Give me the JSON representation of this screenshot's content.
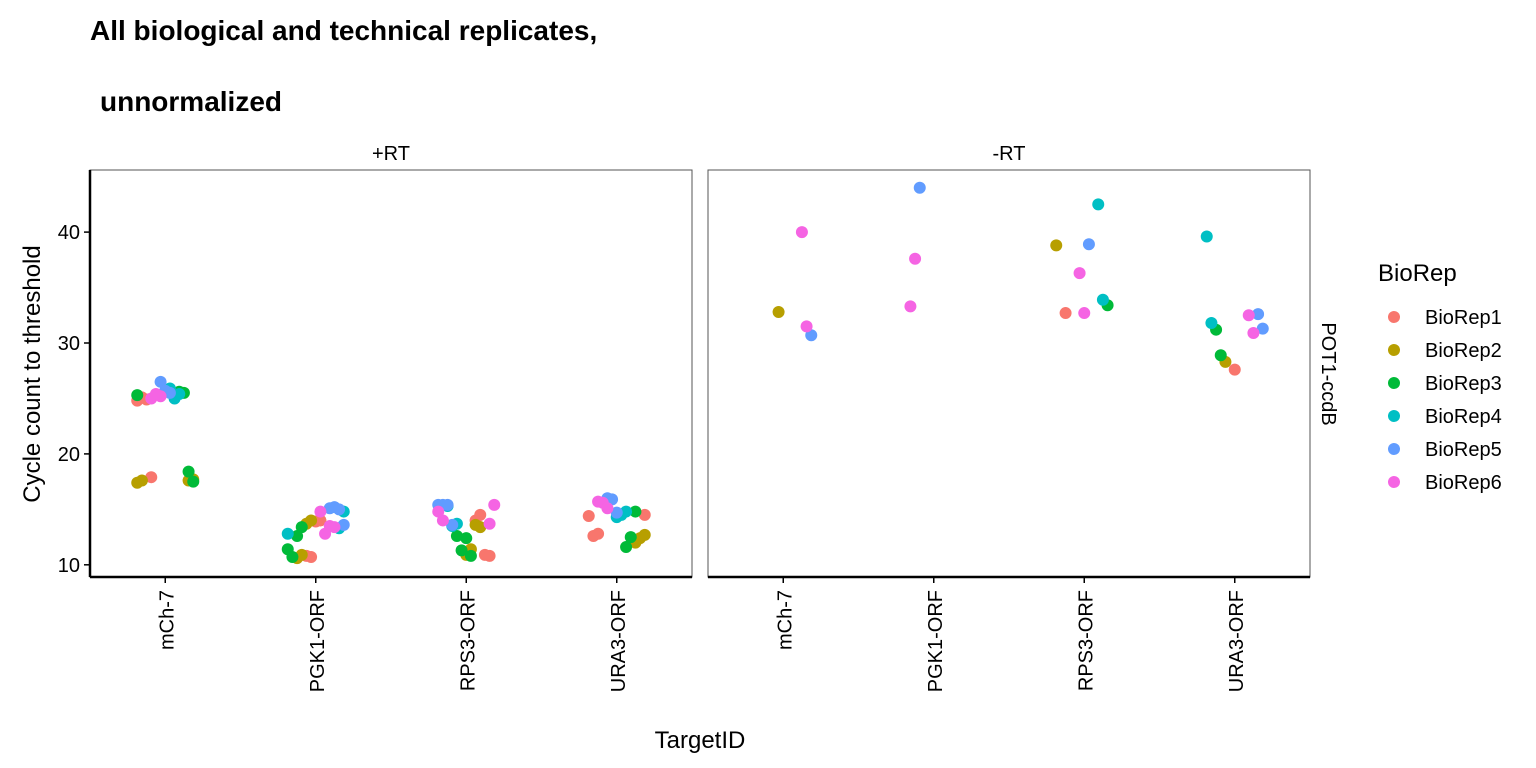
{
  "chart_data": {
    "type": "scatter",
    "title": "All biological and technical replicates,",
    "subtitle": "unnormalized",
    "x_label": "TargetID",
    "y_label": "Cycle count to threshold",
    "row_strip": "POT1-ccdB",
    "legend_title": "BioRep",
    "categories": [
      "mCh-7",
      "PGK1-ORF",
      "RPS3-ORF",
      "URA3-ORF"
    ],
    "ylim": [
      8.9,
      45.6
    ],
    "yticks": [
      10,
      20,
      30,
      40
    ],
    "series": [
      {
        "name": "BioRep1",
        "color": "#F8766D"
      },
      {
        "name": "BioRep2",
        "color": "#B79F00"
      },
      {
        "name": "BioRep3",
        "color": "#00BA38"
      },
      {
        "name": "BioRep4",
        "color": "#00BFC4"
      },
      {
        "name": "BioRep5",
        "color": "#619CFF"
      },
      {
        "name": "BioRep6",
        "color": "#F564E3"
      }
    ],
    "facets": [
      {
        "label": "+RT",
        "series": [
          {
            "values": [
              [
                24.8,
                25.1,
                24.9,
                17.9
              ],
              [
                10.8,
                10.7,
                13.9,
                14.0
              ],
              [
                14.0,
                14.5,
                10.9,
                10.8
              ],
              [
                14.5,
                14.4,
                12.6,
                12.8
              ]
            ]
          },
          {
            "values": [
              [
                17.6,
                17.7,
                17.4,
                17.6
              ],
              [
                10.6,
                10.9,
                13.7,
                14.0
              ],
              [
                10.9,
                11.4,
                13.6,
                13.4
              ],
              [
                12.0,
                12.4,
                12.7
              ]
            ]
          },
          {
            "values": [
              [
                25.6,
                25.5,
                18.4,
                17.5,
                25.3
              ],
              [
                11.4,
                10.7,
                12.6,
                13.4
              ],
              [
                12.6,
                11.3,
                12.4,
                10.8
              ],
              [
                11.6,
                12.5,
                14.8
              ]
            ]
          },
          {
            "values": [
              [
                25.9,
                25.0,
                25.4
              ],
              [
                13.3,
                14.8,
                12.8
              ],
              [
                15.3,
                13.5,
                13.7
              ],
              [
                14.3,
                14.5,
                14.8
              ]
            ]
          },
          {
            "values": [
              [
                26.5,
                25.7,
                25.5
              ],
              [
                15.1,
                15.2,
                15.0,
                13.6
              ],
              [
                15.4,
                15.4,
                15.4,
                13.6
              ],
              [
                16.0,
                15.9,
                14.7
              ]
            ]
          },
          {
            "values": [
              [
                25.0,
                25.4,
                25.2
              ],
              [
                14.8,
                12.8,
                13.5,
                13.4
              ],
              [
                13.7,
                15.4,
                14.8,
                14.0
              ],
              [
                15.7,
                15.6,
                15.1
              ]
            ]
          }
        ]
      },
      {
        "label": "-RT",
        "series": [
          {
            "values": [
              [],
              [],
              [
                32.7
              ],
              [
                27.6
              ]
            ]
          },
          {
            "values": [
              [
                32.8
              ],
              [],
              [
                38.8
              ],
              [
                28.3
              ]
            ]
          },
          {
            "values": [
              [],
              [],
              [
                33.4
              ],
              [
                31.2,
                28.9
              ]
            ]
          },
          {
            "values": [
              [],
              [],
              [
                42.5,
                33.9
              ],
              [
                39.6,
                31.8
              ]
            ]
          },
          {
            "values": [
              [
                30.7
              ],
              [
                44.0
              ],
              [
                38.9
              ],
              [
                32.6,
                31.3
              ]
            ]
          },
          {
            "values": [
              [
                40.0,
                31.5
              ],
              [
                33.3,
                37.6
              ],
              [
                36.3,
                32.7
              ],
              [
                32.5,
                30.9
              ]
            ]
          }
        ]
      }
    ]
  }
}
